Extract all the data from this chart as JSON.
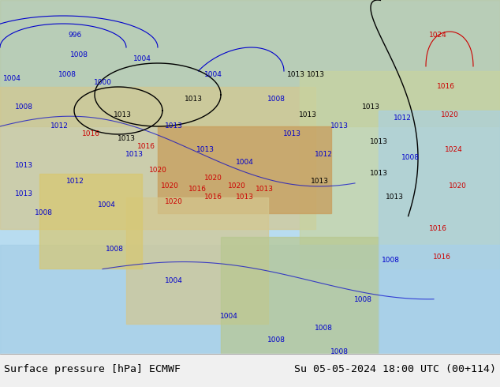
{
  "title_left": "Surface pressure [hPa] ECMWF",
  "title_right": "Su 05-05-2024 18:00 UTC (00+114)",
  "fig_width": 6.34,
  "fig_height": 4.9,
  "dpi": 100,
  "bg_color": "#cce8f4",
  "text_color_black": "#000000",
  "text_color_blue": "#0000cc",
  "text_color_red": "#cc0000",
  "bottom_bar_color": "#d8d8d8",
  "bottom_bar_height": 0.082,
  "title_fontsize": 9.5,
  "map_image_placeholder": true,
  "contour_labels_blue": [
    "996",
    "1000",
    "1004",
    "1008",
    "1008",
    "1012",
    "1013",
    "1004",
    "1008",
    "1013",
    "1004",
    "1008",
    "1012",
    "1013",
    "1004",
    "1008",
    "1013",
    "1004",
    "1008"
  ],
  "contour_labels_red": [
    "1016",
    "1016",
    "1020",
    "1024",
    "1020",
    "1016",
    "1020",
    "1024"
  ],
  "contour_labels_black": [
    "1013",
    "1013",
    "1013",
    "1013",
    "1013",
    "1013"
  ]
}
